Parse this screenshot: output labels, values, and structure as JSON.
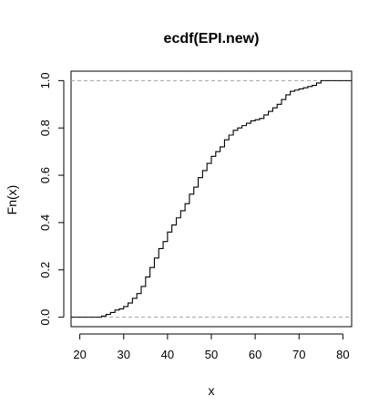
{
  "chart_data": {
    "type": "line",
    "title": "ecdf(EPI.new)",
    "xlabel": "x",
    "ylabel": "Fn(x)",
    "xlim": [
      18,
      82
    ],
    "ylim": [
      -0.04,
      1.04
    ],
    "x_ticks": [
      20,
      30,
      40,
      50,
      60,
      70,
      80
    ],
    "y_ticks": [
      0.0,
      0.2,
      0.4,
      0.6,
      0.8,
      1.0
    ],
    "x_tick_labels": [
      "20",
      "30",
      "40",
      "50",
      "60",
      "70",
      "80"
    ],
    "y_tick_labels": [
      "0.0",
      "0.2",
      "0.4",
      "0.6",
      "0.8",
      "1.0"
    ],
    "reference_lines": [
      0.0,
      1.0
    ],
    "grid": false,
    "series": [
      {
        "step": true,
        "points": [
          [
            18,
            0.0
          ],
          [
            24,
            0.0
          ],
          [
            25,
            0.005
          ],
          [
            26,
            0.012
          ],
          [
            27,
            0.02
          ],
          [
            28,
            0.03
          ],
          [
            29,
            0.035
          ],
          [
            30,
            0.045
          ],
          [
            31,
            0.06
          ],
          [
            32,
            0.08
          ],
          [
            33,
            0.1
          ],
          [
            34,
            0.13
          ],
          [
            35,
            0.17
          ],
          [
            36,
            0.21
          ],
          [
            37,
            0.25
          ],
          [
            38,
            0.29
          ],
          [
            39,
            0.32
          ],
          [
            40,
            0.36
          ],
          [
            41,
            0.39
          ],
          [
            42,
            0.42
          ],
          [
            43,
            0.45
          ],
          [
            44,
            0.48
          ],
          [
            45,
            0.52
          ],
          [
            46,
            0.55
          ],
          [
            47,
            0.59
          ],
          [
            48,
            0.62
          ],
          [
            49,
            0.65
          ],
          [
            50,
            0.68
          ],
          [
            51,
            0.7
          ],
          [
            52,
            0.72
          ],
          [
            53,
            0.75
          ],
          [
            54,
            0.77
          ],
          [
            55,
            0.79
          ],
          [
            56,
            0.8
          ],
          [
            57,
            0.81
          ],
          [
            58,
            0.82
          ],
          [
            59,
            0.83
          ],
          [
            60,
            0.835
          ],
          [
            61,
            0.84
          ],
          [
            62,
            0.855
          ],
          [
            63,
            0.87
          ],
          [
            64,
            0.885
          ],
          [
            65,
            0.9
          ],
          [
            66,
            0.92
          ],
          [
            67,
            0.94
          ],
          [
            68,
            0.955
          ],
          [
            69,
            0.96
          ],
          [
            70,
            0.965
          ],
          [
            71,
            0.97
          ],
          [
            72,
            0.975
          ],
          [
            73,
            0.98
          ],
          [
            74,
            0.99
          ],
          [
            75,
            1.0
          ],
          [
            82,
            1.0
          ]
        ]
      }
    ]
  }
}
